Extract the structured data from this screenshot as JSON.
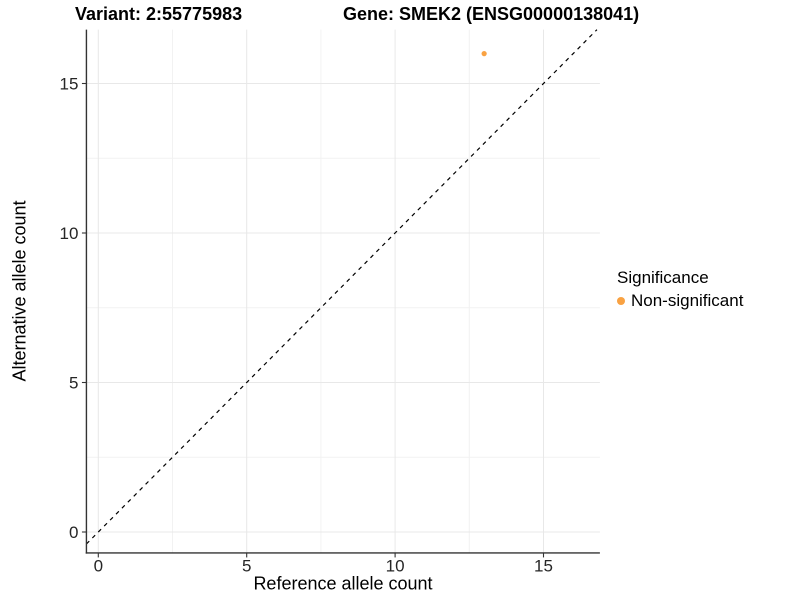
{
  "chart_data": {
    "type": "scatter",
    "titles": {
      "left": "Variant: 2:55775983",
      "right": "Gene: SMEK2 (ENSG00000138041)"
    },
    "xlabel": "Reference allele count",
    "ylabel": "Alternative allele count",
    "xlim": [
      -0.4,
      16.9
    ],
    "ylim": [
      -0.7,
      16.8
    ],
    "xticks": [
      0,
      5,
      10,
      15
    ],
    "yticks": [
      0,
      5,
      10,
      15
    ],
    "minor_grid_step": 2.5,
    "grid": "major+minor",
    "points": [
      {
        "x": 13,
        "y": 16,
        "series": "Non-significant"
      }
    ],
    "identity_line": {
      "slope": 1,
      "intercept": 0,
      "style": "dashed"
    },
    "legend": {
      "title": "Significance",
      "position": "right",
      "items": [
        {
          "label": "Non-significant",
          "color": "#F9A242"
        }
      ]
    },
    "colors": {
      "point": "#F9A242",
      "grid_major": "#E8E8E8",
      "grid_minor": "#F2F2F2",
      "axis_line": "#333333",
      "tick_mark": "#333333",
      "tick_text": "#262626",
      "identity_line": "#000000"
    }
  }
}
